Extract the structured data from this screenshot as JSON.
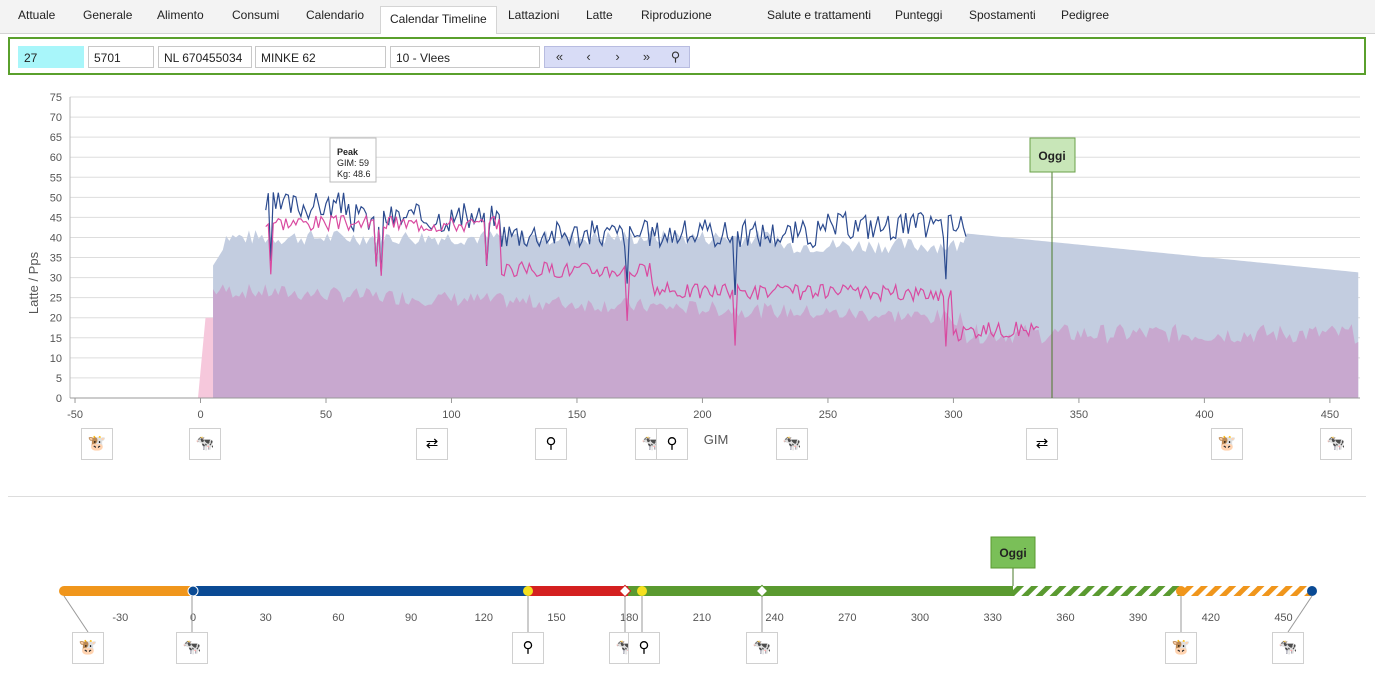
{
  "tabs": [
    "Attuale",
    "Generale",
    "Alimento",
    "Consumi",
    "Calendario",
    "Calendar Timeline",
    "Lattazioni",
    "Latte",
    "Riproduzione",
    "Salute e trattamenti",
    "Punteggi",
    "Spostamenti",
    "Pedigree"
  ],
  "active_tab": "Calendar Timeline",
  "toolbar": {
    "number": "27",
    "id": "5701",
    "nl": "NL 670455034",
    "name": "MINKE 62",
    "group": "10 - Vlees"
  },
  "chart_data": {
    "type": "line",
    "ylabel": "Latte / Pps",
    "xlabel": "GIM",
    "xlim": [
      -52,
      462
    ],
    "ylim": [
      0,
      75
    ],
    "x_ticks": [
      -50,
      0,
      50,
      100,
      150,
      200,
      250,
      300,
      350,
      400,
      450
    ],
    "y_ticks": [
      0,
      5,
      10,
      15,
      20,
      25,
      30,
      35,
      40,
      45,
      50,
      55,
      60,
      65,
      70,
      75
    ],
    "series": [],
    "peak_tooltip": {
      "title": "Peak",
      "gim_label": "GIM: 59",
      "kg_label": "Kg: 48.6",
      "gim": 59,
      "kg": 48.6
    },
    "today_label": "Oggi",
    "today_x": 338
  },
  "timeline": {
    "today_label": "Oggi",
    "ticks": [
      -30,
      0,
      30,
      60,
      90,
      120,
      150,
      180,
      210,
      240,
      270,
      300,
      330,
      360,
      390,
      420,
      450
    ]
  },
  "colors": {
    "accent": "#5aa02c",
    "blue_line": "#2c4b8f",
    "pink_line": "#d94aa0",
    "orange": "#f0961c",
    "navy": "#0a4a94",
    "red": "#d42020",
    "green": "#5a9a30"
  }
}
